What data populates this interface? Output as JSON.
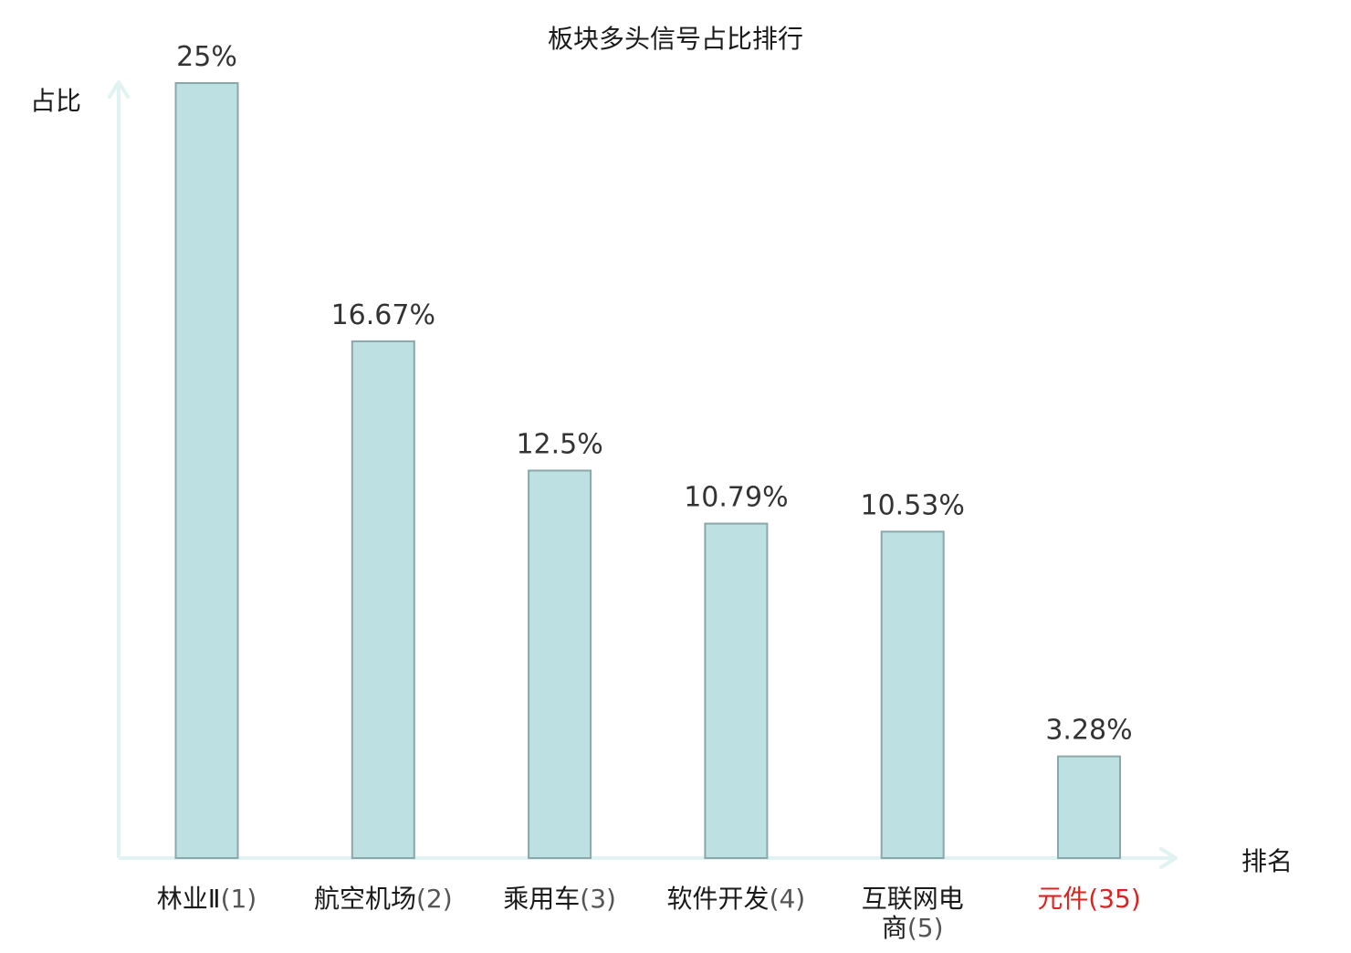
{
  "chart_data": {
    "type": "bar",
    "title": "板块多头信号占比排行",
    "ylabel": "占比",
    "xlabel": "排名",
    "categories": [
      {
        "name": "林业Ⅱ",
        "rank": "(1)"
      },
      {
        "name": "航空机场",
        "rank": "(2)"
      },
      {
        "name": "乘用车",
        "rank": "(3)"
      },
      {
        "name": "软件开发",
        "rank": "(4)"
      },
      {
        "name": "互联网电",
        "name2": "商",
        "rank": "(5)"
      },
      {
        "name": "元件",
        "rank": "(35)",
        "highlight": true
      }
    ],
    "values": [
      25,
      16.67,
      12.5,
      10.79,
      10.53,
      3.28
    ],
    "value_labels": [
      "25%",
      "16.67%",
      "12.5%",
      "10.79%",
      "10.53%",
      "3.28%"
    ],
    "ylim": [
      0,
      25
    ],
    "grid": false,
    "legend": "none",
    "colors": {
      "bar_fill": "#bde0e3",
      "bar_stroke": "#8aa7aa",
      "axis": "#e0f2f1",
      "text": "#1a1a1a",
      "value_text": "#333333",
      "rank_text": "#555555",
      "highlight": "#dd2222"
    }
  }
}
